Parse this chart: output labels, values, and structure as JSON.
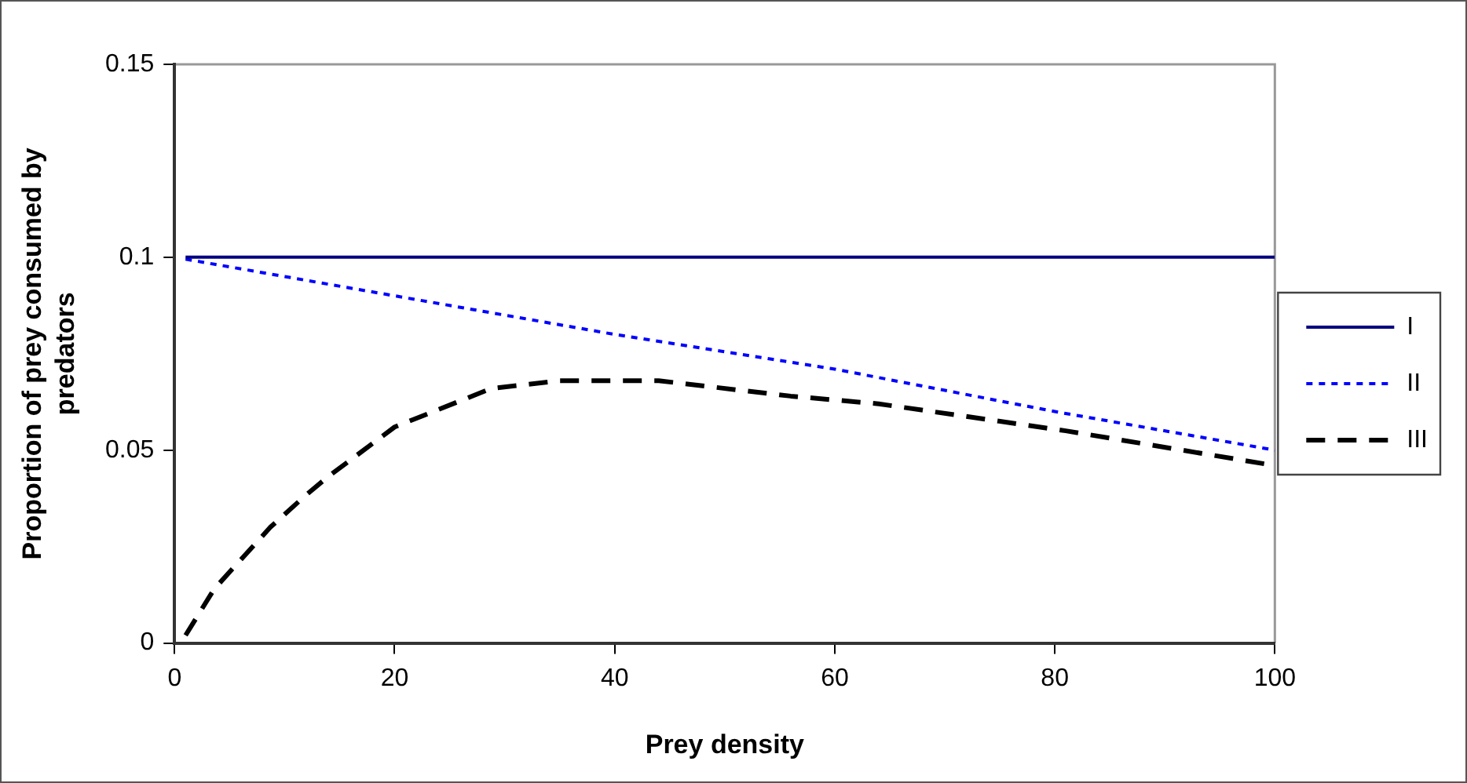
{
  "chart_data": {
    "type": "line",
    "xlabel": "Prey density",
    "ylabel": "Proportion of prey consumed by predators",
    "xlim": [
      0,
      100
    ],
    "xticks": [
      0,
      20,
      40,
      60,
      80,
      100
    ],
    "ylim": [
      0,
      0.15
    ],
    "yticks": [
      0,
      0.05,
      0.1,
      0.15
    ],
    "grid": false,
    "legend": "right",
    "marker": "none",
    "series": [
      {
        "name": "I",
        "color": "#000080",
        "line_style": "solid",
        "x": [
          1,
          100
        ],
        "values": [
          0.1,
          0.1
        ]
      },
      {
        "name": "II",
        "color": "#0000ff",
        "line_style": "dotted",
        "x": [
          1,
          20,
          40,
          60,
          80,
          100
        ],
        "values": [
          0.0995,
          0.09,
          0.08,
          0.071,
          0.06,
          0.05
        ]
      },
      {
        "name": "III",
        "color": "#000000",
        "line_style": "dashed",
        "x": [
          1,
          3.6,
          8.7,
          11.8,
          13.9,
          20,
          28.8,
          35,
          44,
          56,
          64,
          81,
          100
        ],
        "values": [
          0.002,
          0.014,
          0.03,
          0.038,
          0.043,
          0.056,
          0.066,
          0.068,
          0.068,
          0.064,
          0.062,
          0.055,
          0.046
        ]
      }
    ]
  }
}
